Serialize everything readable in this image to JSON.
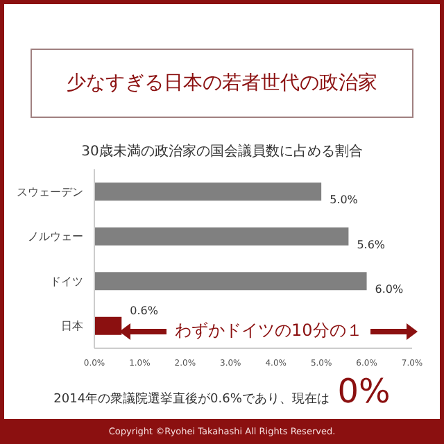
{
  "chart_data": {
    "type": "bar",
    "orientation": "horizontal",
    "title": "少なすぎる日本の若者世代の政治家",
    "subtitle": "30歳未満の政治家の国会議員数に占める割合",
    "categories": [
      "スウェーデン",
      "ノルウェー",
      "ドイツ",
      "日本"
    ],
    "values": [
      5.0,
      5.6,
      6.0,
      0.6
    ],
    "colors": [
      "#808080",
      "#808080",
      "#808080",
      "#8b1010"
    ],
    "value_labels": [
      "5.0%",
      "5.6%",
      "6.0%",
      "0.6%"
    ],
    "xlim": [
      0,
      7
    ],
    "xticks": [
      {
        "value": 0,
        "label": "0.0%"
      },
      {
        "value": 1,
        "label": "1.0%"
      },
      {
        "value": 2,
        "label": "2.0%"
      },
      {
        "value": 3,
        "label": "3.0%"
      },
      {
        "value": 4,
        "label": "4.0%"
      },
      {
        "value": 5,
        "label": "5.0%"
      },
      {
        "value": 6,
        "label": "6.0%"
      },
      {
        "value": 7,
        "label": "7.0%"
      }
    ],
    "grid": false,
    "legend": false,
    "annotations": [
      "わずかドイツの10分の１",
      "2014年の衆議院選挙直後が0.6%であり、現在は 0%",
      "Copyright ©Ryohei Takahashi All Rights Reserved."
    ]
  }
}
